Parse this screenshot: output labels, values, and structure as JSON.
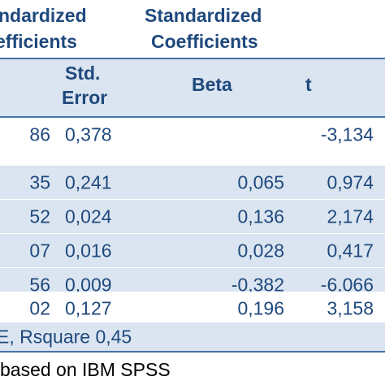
{
  "header": {
    "unstd_line1": "ndardized",
    "unstd_line2": "efficients",
    "std_line1": "Standardized",
    "std_line2": "Coefficients",
    "col_se_line1": "Std.",
    "col_se_line2": "Error",
    "col_beta": "Beta",
    "col_t": "t"
  },
  "rows": [
    {
      "b": "86",
      "se": "0,378",
      "beta": "",
      "t": "-3,134"
    },
    {
      "b": "35",
      "se": "0,241",
      "beta": "0,065",
      "t": "0,974"
    },
    {
      "b": "52",
      "se": "0,024",
      "beta": "0,136",
      "t": "2,174"
    },
    {
      "b": "07",
      "se": "0,016",
      "beta": "0,028",
      "t": "0,417"
    },
    {
      "b": "56",
      "se": "0,009",
      "beta": "-0,382",
      "t": "-6,066"
    },
    {
      "b": "02",
      "se": "0,127",
      "beta": "0,196",
      "t": "3,158"
    }
  ],
  "note": "E, Rsquare 0,45",
  "source": "based on IBM SPSS",
  "colors": {
    "text": "#1f497d",
    "band": "#dbe5f1",
    "rule": "#4472a8"
  }
}
